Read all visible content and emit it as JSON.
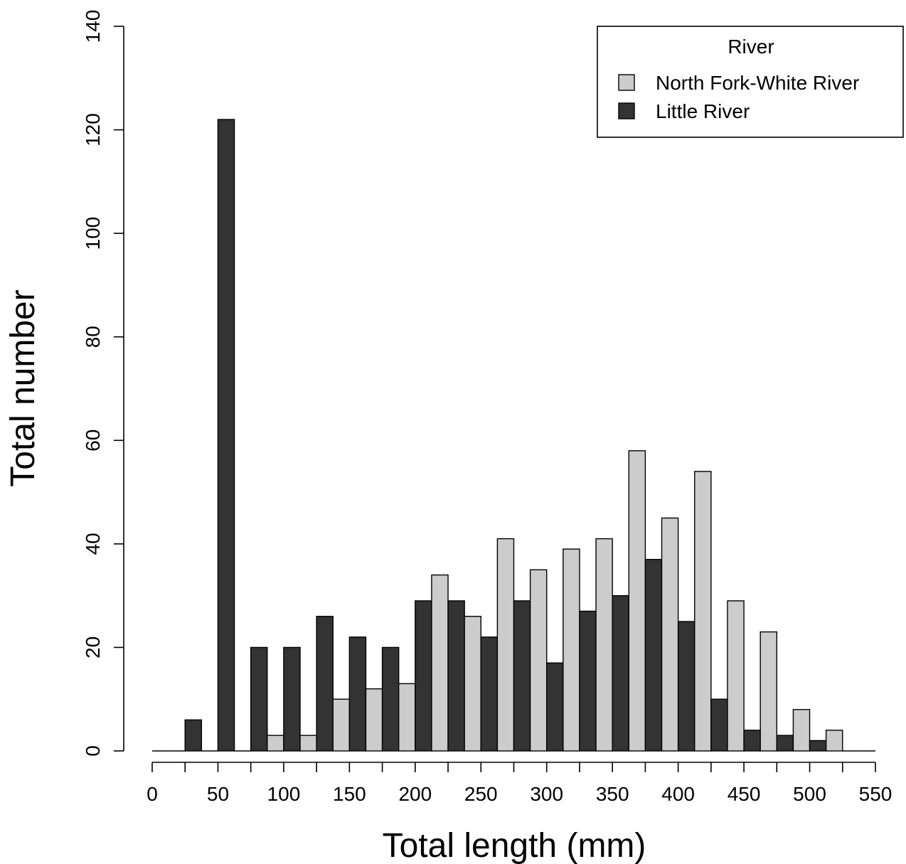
{
  "chart_data": {
    "type": "bar",
    "bin_starts": [
      0,
      25,
      50,
      75,
      100,
      125,
      150,
      175,
      200,
      225,
      250,
      275,
      300,
      325,
      350,
      375,
      400,
      425,
      450,
      475,
      500,
      525
    ],
    "series": [
      {
        "name": "Little River",
        "color": "#333333",
        "values": [
          0,
          6,
          122,
          20,
          20,
          26,
          22,
          20,
          29,
          29,
          22,
          29,
          17,
          27,
          30,
          37,
          25,
          10,
          4,
          3,
          2,
          0
        ]
      },
      {
        "name": "North Fork-White River",
        "color": "#cccccc",
        "values": [
          0,
          0,
          0,
          3,
          3,
          10,
          12,
          13,
          34,
          26,
          41,
          35,
          39,
          41,
          58,
          45,
          54,
          29,
          23,
          8,
          4,
          0
        ]
      }
    ],
    "xlabel": "Total length (mm)",
    "ylabel": "Total number",
    "xlim": [
      0,
      550
    ],
    "ylim": [
      0,
      140
    ],
    "x_ticks": [
      0,
      50,
      100,
      150,
      200,
      250,
      300,
      350,
      400,
      450,
      500,
      550
    ],
    "y_ticks": [
      0,
      20,
      40,
      60,
      80,
      100,
      120,
      140
    ],
    "legend": {
      "title": "River",
      "position": "top-right",
      "entries": [
        "North Fork-White River",
        "Little River"
      ]
    },
    "grid": false
  }
}
